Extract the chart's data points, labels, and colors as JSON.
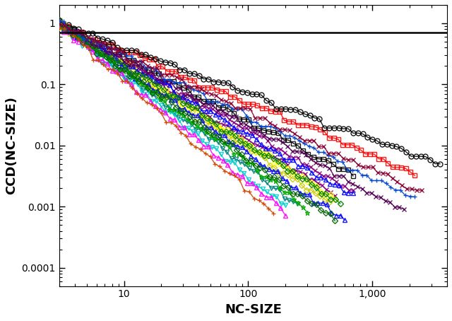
{
  "xlabel": "NC-SIZE",
  "ylabel": "CCD(NC-SIZE)",
  "xlim": [
    3,
    4000
  ],
  "ylim": [
    5e-05,
    2.0
  ],
  "hline_y": 0.7,
  "series": [
    {
      "color": "#ff0000",
      "marker": "s",
      "x_max": 2200,
      "exp": 0.85,
      "n": 80,
      "ms": 4
    },
    {
      "color": "#000000",
      "marker": "s",
      "x_max": 700,
      "exp": 1.05,
      "n": 60,
      "ms": 4
    },
    {
      "color": "#000000",
      "marker": "o",
      "x_max": 3500,
      "exp": 0.75,
      "n": 80,
      "ms": 5
    },
    {
      "color": "#880080",
      "marker": "x",
      "x_max": 700,
      "exp": 1.15,
      "n": 70,
      "ms": 4
    },
    {
      "color": "#880080",
      "marker": "x",
      "x_max": 500,
      "exp": 1.25,
      "n": 65,
      "ms": 4
    },
    {
      "color": "#008080",
      "marker": "v",
      "x_max": 250,
      "exp": 1.55,
      "n": 55,
      "ms": 4
    },
    {
      "color": "#00cccc",
      "marker": "v",
      "x_max": 200,
      "exp": 1.65,
      "n": 50,
      "ms": 4
    },
    {
      "color": "#cccc00",
      "marker": "D",
      "x_max": 450,
      "exp": 1.35,
      "n": 60,
      "ms": 4
    },
    {
      "color": "#ffff00",
      "marker": "D",
      "x_max": 500,
      "exp": 1.3,
      "n": 60,
      "ms": 4
    },
    {
      "color": "#0000ff",
      "marker": "^",
      "x_max": 600,
      "exp": 1.4,
      "n": 65,
      "ms": 4
    },
    {
      "color": "#0000ff",
      "marker": "^",
      "x_max": 700,
      "exp": 1.2,
      "n": 65,
      "ms": 4
    },
    {
      "color": "#00aa00",
      "marker": "*",
      "x_max": 300,
      "exp": 1.5,
      "n": 55,
      "ms": 5
    },
    {
      "color": "#ff00ff",
      "marker": "^",
      "x_max": 200,
      "exp": 1.7,
      "n": 48,
      "ms": 4
    },
    {
      "color": "#006400",
      "marker": "D",
      "x_max": 500,
      "exp": 1.45,
      "n": 60,
      "ms": 4
    },
    {
      "color": "#008000",
      "marker": "D",
      "x_max": 550,
      "exp": 1.3,
      "n": 60,
      "ms": 4
    },
    {
      "color": "#cc4400",
      "marker": "+",
      "x_max": 160,
      "exp": 1.8,
      "n": 45,
      "ms": 5
    },
    {
      "color": "#550055",
      "marker": "x",
      "x_max": 1800,
      "exp": 1.1,
      "n": 75,
      "ms": 4
    },
    {
      "color": "#0044cc",
      "marker": "+",
      "x_max": 2200,
      "exp": 1.0,
      "n": 75,
      "ms": 5
    },
    {
      "color": "#880033",
      "marker": "x",
      "x_max": 2500,
      "exp": 0.95,
      "n": 75,
      "ms": 4
    }
  ]
}
